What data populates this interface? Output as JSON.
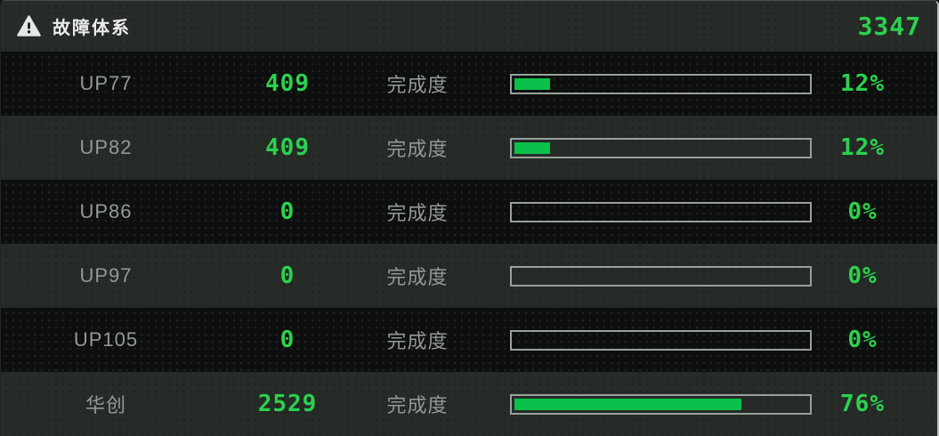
{
  "panel": {
    "title": "故障体系",
    "total": "3347",
    "header_icon": "warning-triangle-icon"
  },
  "colors": {
    "green_text": "#2bd14f",
    "green_fill": "#0abf4a",
    "gray_text": "#939896",
    "dark_row_bg": "#0c0f0d",
    "light_row_bg": "#262b27",
    "header_bg": "#272c28",
    "bar_border": "#9aa09b"
  },
  "rows": [
    {
      "name": "UP77",
      "value": "409",
      "progress_label": "完成度",
      "percent": 12,
      "percent_text": "12%"
    },
    {
      "name": "UP82",
      "value": "409",
      "progress_label": "完成度",
      "percent": 12,
      "percent_text": "12%"
    },
    {
      "name": "UP86",
      "value": "0",
      "progress_label": "完成度",
      "percent": 0,
      "percent_text": "0%"
    },
    {
      "name": "UP97",
      "value": "0",
      "progress_label": "完成度",
      "percent": 0,
      "percent_text": "0%"
    },
    {
      "name": "UP105",
      "value": "0",
      "progress_label": "完成度",
      "percent": 0,
      "percent_text": "0%"
    },
    {
      "name": "华创",
      "value": "2529",
      "progress_label": "完成度",
      "percent": 76,
      "percent_text": "76%"
    }
  ]
}
